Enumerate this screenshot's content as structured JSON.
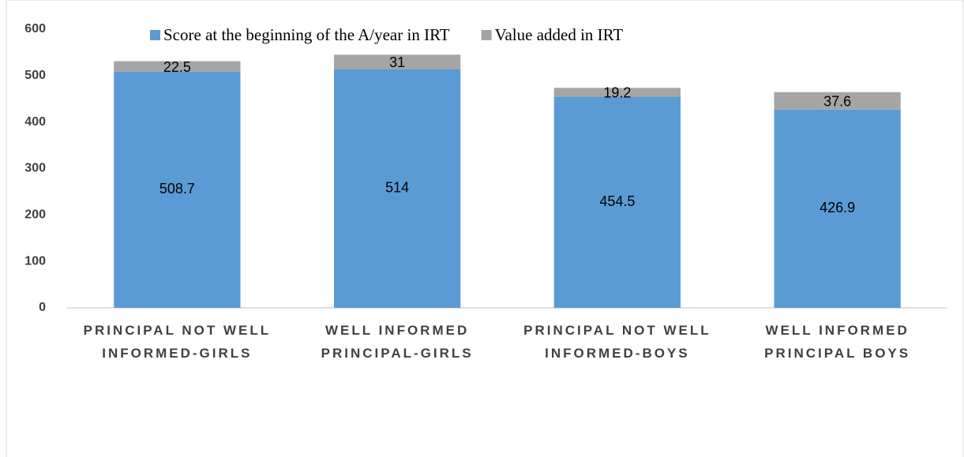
{
  "chart_data": {
    "type": "stacked_bar",
    "categories": [
      "PRINCIPAL NOT WELL INFORMED-GIRLS",
      "WELL INFORMED PRINCIPAL-GIRLS",
      "PRINCIPAL NOT WELL INFORMED-BOYS",
      "WELL INFORMED PRINCIPAL -BOYS"
    ],
    "series": [
      {
        "name": "Score at the beginning of the A/year in IRT",
        "color": "#5b9bd5",
        "values": [
          508.7,
          514,
          454.5,
          426.9
        ]
      },
      {
        "name": "Value added in IRT",
        "color": "#a5a5a5",
        "values": [
          22.5,
          31,
          19.2,
          37.6
        ]
      }
    ],
    "ylim": [
      0,
      600
    ],
    "yticks": [
      0,
      100,
      200,
      300,
      400,
      500,
      600
    ],
    "grid": false,
    "legend": "top"
  }
}
